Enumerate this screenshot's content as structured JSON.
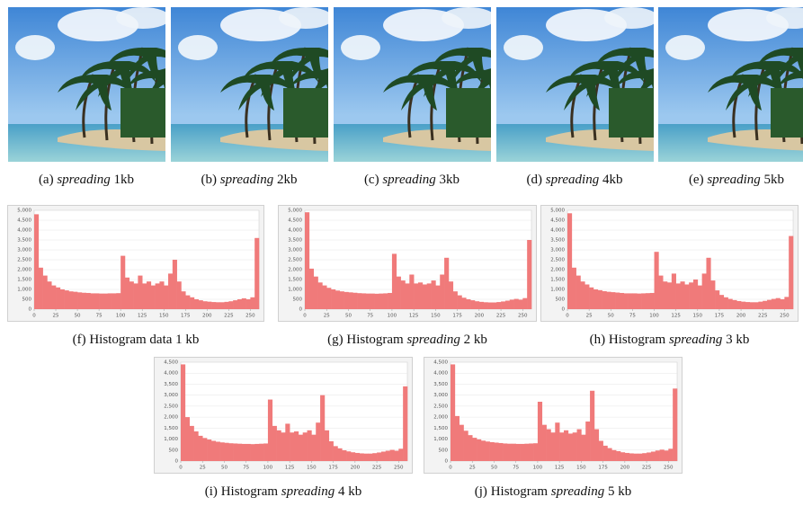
{
  "images": [
    {
      "label": "(a)",
      "emphasis": "spreading",
      "size": "1kb"
    },
    {
      "label": "(b)",
      "emphasis": "spreading",
      "size": "2kb"
    },
    {
      "label": "(c)",
      "emphasis": "spreading",
      "size": "3kb"
    },
    {
      "label": "(d)",
      "emphasis": "spreading",
      "size": "4kb"
    },
    {
      "label": "(e)",
      "emphasis": "spreading",
      "size": "5kb"
    }
  ],
  "chart_data": [
    {
      "type": "histogram",
      "caption": {
        "label": "(f)",
        "text": "Histogram data 1 kb"
      },
      "color": "#f07a7a",
      "grid": true,
      "bins": [
        0,
        5,
        10,
        15,
        20,
        25,
        30,
        35,
        40,
        45,
        50,
        55,
        60,
        65,
        70,
        75,
        80,
        85,
        90,
        95,
        100,
        105,
        110,
        115,
        120,
        125,
        130,
        135,
        140,
        145,
        150,
        155,
        160,
        165,
        170,
        175,
        180,
        185,
        190,
        195,
        200,
        205,
        210,
        215,
        220,
        225,
        230,
        235,
        240,
        245,
        250,
        255,
        260
      ],
      "values": [
        4800,
        2100,
        1700,
        1400,
        1200,
        1100,
        1000,
        950,
        900,
        880,
        850,
        830,
        820,
        800,
        800,
        790,
        790,
        800,
        800,
        810,
        2700,
        1600,
        1400,
        1300,
        1700,
        1300,
        1400,
        1200,
        1300,
        1400,
        1200,
        1800,
        2500,
        1400,
        900,
        700,
        600,
        500,
        450,
        400,
        380,
        360,
        350,
        350,
        370,
        400,
        450,
        500,
        550,
        500,
        600,
        3600
      ],
      "xlim": [
        0,
        260
      ],
      "xticks": [
        0,
        25,
        50,
        75,
        100,
        125,
        150,
        175,
        200,
        225,
        250
      ],
      "ylim": [
        0,
        5000
      ],
      "yticks": [
        0,
        500,
        {
          "value": 1000,
          "label": "1,000"
        },
        {
          "value": 1500,
          "label": "1,500"
        },
        {
          "value": 2000,
          "label": "2,000"
        },
        {
          "value": 2500,
          "label": "2,500"
        },
        {
          "value": 3000,
          "label": "3,000"
        },
        {
          "value": 3500,
          "label": "3,500"
        },
        {
          "value": 4000,
          "label": "4,000"
        },
        {
          "value": 4500,
          "label": "4,500"
        },
        {
          "value": 5000,
          "label": "5,000"
        }
      ]
    },
    {
      "type": "histogram",
      "caption": {
        "label": "(g)",
        "text": "Histogram",
        "emphasis": "spreading",
        "size": "2 kb"
      },
      "color": "#f07a7a",
      "grid": true,
      "bins": [
        0,
        5,
        10,
        15,
        20,
        25,
        30,
        35,
        40,
        45,
        50,
        55,
        60,
        65,
        70,
        75,
        80,
        85,
        90,
        95,
        100,
        105,
        110,
        115,
        120,
        125,
        130,
        135,
        140,
        145,
        150,
        155,
        160,
        165,
        170,
        175,
        180,
        185,
        190,
        195,
        200,
        205,
        210,
        215,
        220,
        225,
        230,
        235,
        240,
        245,
        250,
        255,
        260
      ],
      "values": [
        4900,
        2050,
        1650,
        1350,
        1200,
        1080,
        1000,
        940,
        900,
        870,
        850,
        830,
        810,
        800,
        790,
        790,
        780,
        790,
        800,
        820,
        2800,
        1650,
        1450,
        1300,
        1750,
        1300,
        1350,
        1250,
        1300,
        1450,
        1200,
        1750,
        2600,
        1400,
        900,
        700,
        580,
        500,
        450,
        400,
        370,
        350,
        340,
        340,
        360,
        390,
        430,
        480,
        520,
        480,
        560,
        3500
      ],
      "xlim": [
        0,
        260
      ],
      "xticks": [
        0,
        25,
        50,
        75,
        100,
        125,
        150,
        175,
        200,
        225,
        250
      ],
      "ylim": [
        0,
        5000
      ],
      "yticks": [
        0,
        500,
        {
          "value": 1000,
          "label": "1,000"
        },
        {
          "value": 1500,
          "label": "1,500"
        },
        {
          "value": 2000,
          "label": "2,000"
        },
        {
          "value": 2500,
          "label": "2,500"
        },
        {
          "value": 3000,
          "label": "3,000"
        },
        {
          "value": 3500,
          "label": "3,500"
        },
        {
          "value": 4000,
          "label": "4,000"
        },
        {
          "value": 4500,
          "label": "4,500"
        },
        {
          "value": 5000,
          "label": "5,000"
        }
      ]
    },
    {
      "type": "histogram",
      "caption": {
        "label": "(h)",
        "text": "Histogram",
        "emphasis": "spreading",
        "size": "3 kb"
      },
      "color": "#f07a7a",
      "grid": true,
      "bins": [
        0,
        5,
        10,
        15,
        20,
        25,
        30,
        35,
        40,
        45,
        50,
        55,
        60,
        65,
        70,
        75,
        80,
        85,
        90,
        95,
        100,
        105,
        110,
        115,
        120,
        125,
        130,
        135,
        140,
        145,
        150,
        155,
        160,
        165,
        170,
        175,
        180,
        185,
        190,
        195,
        200,
        205,
        210,
        215,
        220,
        225,
        230,
        235,
        240,
        245,
        250,
        255,
        260
      ],
      "values": [
        4850,
        2100,
        1700,
        1400,
        1250,
        1100,
        1000,
        960,
        910,
        880,
        860,
        840,
        820,
        800,
        800,
        800,
        790,
        800,
        810,
        820,
        2900,
        1700,
        1400,
        1350,
        1800,
        1300,
        1400,
        1250,
        1350,
        1500,
        1200,
        1800,
        2600,
        1450,
        950,
        720,
        600,
        520,
        460,
        410,
        380,
        360,
        350,
        350,
        380,
        420,
        470,
        520,
        560,
        500,
        620,
        3700
      ],
      "xlim": [
        0,
        260
      ],
      "xticks": [
        0,
        25,
        50,
        75,
        100,
        125,
        150,
        175,
        200,
        225,
        250
      ],
      "ylim": [
        0,
        5000
      ],
      "yticks": [
        0,
        500,
        {
          "value": 1000,
          "label": "1,000"
        },
        {
          "value": 1500,
          "label": "1,500"
        },
        {
          "value": 2000,
          "label": "2,000"
        },
        {
          "value": 2500,
          "label": "2,500"
        },
        {
          "value": 3000,
          "label": "3,000"
        },
        {
          "value": 3500,
          "label": "3,500"
        },
        {
          "value": 4000,
          "label": "4,000"
        },
        {
          "value": 4500,
          "label": "4,500"
        },
        {
          "value": 5000,
          "label": "5,000"
        }
      ]
    },
    {
      "type": "histogram",
      "caption": {
        "label": "(i)",
        "text": "Histogram",
        "emphasis": "spreading",
        "size": "4 kb"
      },
      "color": "#f07a7a",
      "grid": true,
      "bins": [
        0,
        5,
        10,
        15,
        20,
        25,
        30,
        35,
        40,
        45,
        50,
        55,
        60,
        65,
        70,
        75,
        80,
        85,
        90,
        95,
        100,
        105,
        110,
        115,
        120,
        125,
        130,
        135,
        140,
        145,
        150,
        155,
        160,
        165,
        170,
        175,
        180,
        185,
        190,
        195,
        200,
        205,
        210,
        215,
        220,
        225,
        230,
        235,
        240,
        245,
        250,
        255,
        260
      ],
      "values": [
        4400,
        2000,
        1600,
        1350,
        1150,
        1050,
        980,
        920,
        880,
        850,
        830,
        810,
        800,
        790,
        780,
        780,
        770,
        780,
        790,
        800,
        2800,
        1600,
        1400,
        1300,
        1700,
        1300,
        1350,
        1200,
        1300,
        1400,
        1200,
        1750,
        3000,
        1400,
        900,
        680,
        580,
        490,
        440,
        400,
        370,
        350,
        340,
        340,
        360,
        390,
        430,
        470,
        510,
        470,
        560,
        3400
      ],
      "xlim": [
        0,
        260
      ],
      "xticks": [
        0,
        25,
        50,
        75,
        100,
        125,
        150,
        175,
        200,
        225,
        250
      ],
      "ylim": [
        0,
        4500
      ],
      "yticks": [
        0,
        500,
        {
          "value": 1000,
          "label": "1,000"
        },
        {
          "value": 1500,
          "label": "1,500"
        },
        {
          "value": 2000,
          "label": "2,000"
        },
        {
          "value": 2500,
          "label": "2,500"
        },
        {
          "value": 3000,
          "label": "3,000"
        },
        {
          "value": 3500,
          "label": "3,500"
        },
        {
          "value": 4000,
          "label": "4,000"
        },
        {
          "value": 4500,
          "label": "4,500"
        }
      ]
    },
    {
      "type": "histogram",
      "caption": {
        "label": "(j)",
        "text": "Histogram",
        "emphasis": "spreading",
        "size": "5 kb"
      },
      "color": "#f07a7a",
      "grid": true,
      "bins": [
        0,
        5,
        10,
        15,
        20,
        25,
        30,
        35,
        40,
        45,
        50,
        55,
        60,
        65,
        70,
        75,
        80,
        85,
        90,
        95,
        100,
        105,
        110,
        115,
        120,
        125,
        130,
        135,
        140,
        145,
        150,
        155,
        160,
        165,
        170,
        175,
        180,
        185,
        190,
        195,
        200,
        205,
        210,
        215,
        220,
        225,
        230,
        235,
        240,
        245,
        250,
        255,
        260
      ],
      "values": [
        4400,
        2050,
        1650,
        1380,
        1180,
        1060,
        990,
        930,
        890,
        860,
        840,
        820,
        800,
        790,
        790,
        780,
        780,
        790,
        800,
        810,
        2700,
        1650,
        1450,
        1300,
        1750,
        1300,
        1400,
        1250,
        1300,
        1450,
        1200,
        1800,
        3200,
        1450,
        920,
        700,
        590,
        500,
        450,
        400,
        370,
        350,
        340,
        340,
        360,
        390,
        430,
        480,
        520,
        480,
        560,
        3300
      ],
      "xlim": [
        0,
        260
      ],
      "xticks": [
        0,
        25,
        50,
        75,
        100,
        125,
        150,
        175,
        200,
        225,
        250
      ],
      "ylim": [
        0,
        4500
      ],
      "yticks": [
        0,
        500,
        {
          "value": 1000,
          "label": "1,000"
        },
        {
          "value": 1500,
          "label": "1,500"
        },
        {
          "value": 2000,
          "label": "2,000"
        },
        {
          "value": 2500,
          "label": "2,500"
        },
        {
          "value": 3000,
          "label": "3,000"
        },
        {
          "value": 3500,
          "label": "3,500"
        },
        {
          "value": 4000,
          "label": "4,000"
        },
        {
          "value": 4500,
          "label": "4,500"
        }
      ]
    }
  ]
}
